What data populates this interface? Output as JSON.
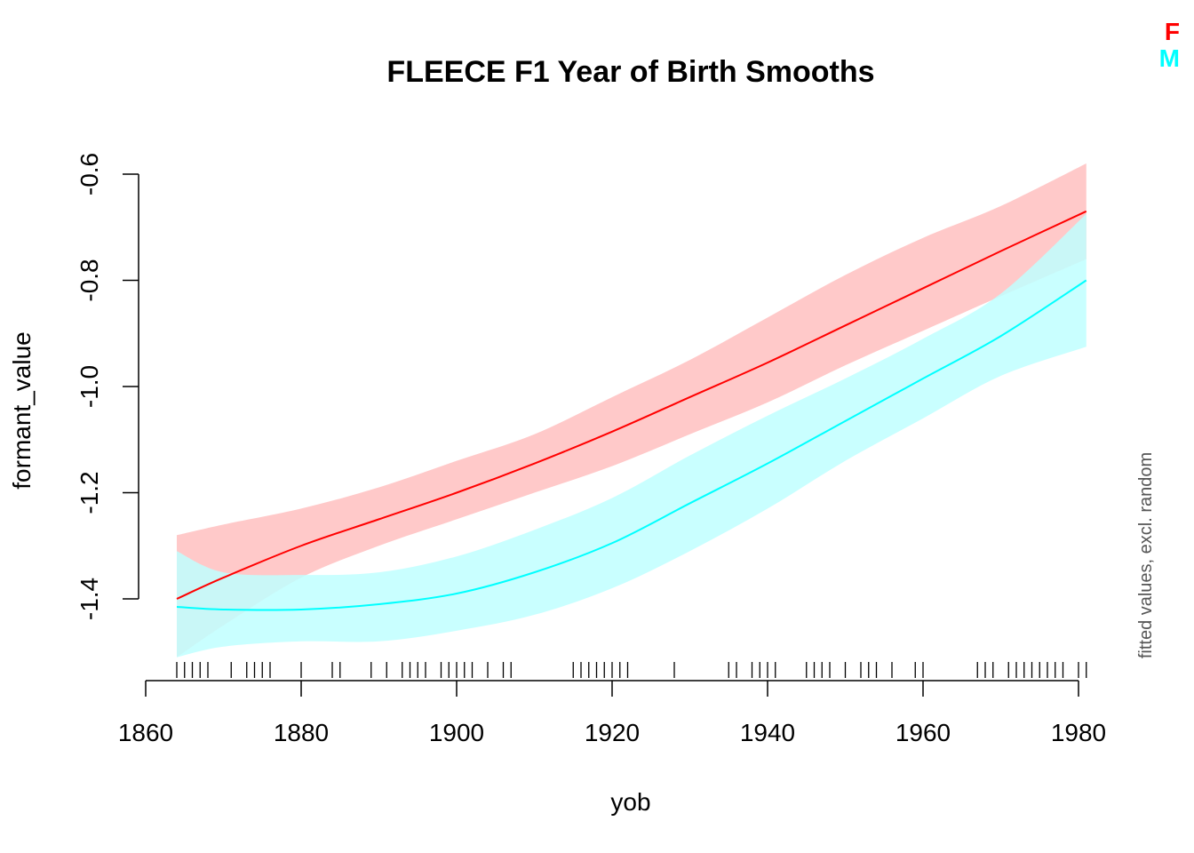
{
  "chart_data": {
    "type": "line",
    "title": "FLEECE F1 Year of Birth Smooths",
    "xlabel": "yob",
    "ylabel": "formant_value",
    "side_note": "fitted values, excl. random",
    "xlim": [
      1864,
      1981
    ],
    "ylim": [
      -1.52,
      -0.58
    ],
    "x_ticks": [
      1860,
      1880,
      1900,
      1920,
      1940,
      1960,
      1980
    ],
    "y_ticks": [
      -1.4,
      -1.2,
      -1.0,
      -0.8,
      -0.6
    ],
    "x_tick_labels": [
      "1860",
      "1880",
      "1900",
      "1920",
      "1940",
      "1960",
      "1980"
    ],
    "y_tick_labels": [
      "-1.4",
      "-1.2",
      "-1.0",
      "-0.8",
      "-0.6"
    ],
    "x": [
      1864,
      1870,
      1880,
      1890,
      1900,
      1910,
      1920,
      1930,
      1940,
      1950,
      1960,
      1970,
      1981
    ],
    "series": [
      {
        "name": "F",
        "color": "#ff0000",
        "band_color": "#ffbfbf",
        "fit": [
          -1.4,
          -1.36,
          -1.3,
          -1.25,
          -1.2,
          -1.145,
          -1.085,
          -1.02,
          -0.955,
          -0.885,
          -0.815,
          -0.745,
          -0.67
        ],
        "lower": [
          -1.51,
          -1.45,
          -1.36,
          -1.3,
          -1.25,
          -1.2,
          -1.15,
          -1.09,
          -1.03,
          -0.96,
          -0.895,
          -0.83,
          -0.76
        ],
        "upper": [
          -1.28,
          -1.26,
          -1.23,
          -1.19,
          -1.14,
          -1.09,
          -1.02,
          -0.95,
          -0.87,
          -0.79,
          -0.72,
          -0.66,
          -0.58
        ]
      },
      {
        "name": "M",
        "color": "#00ffff",
        "band_color": "#bfffff",
        "fit": [
          -1.415,
          -1.42,
          -1.42,
          -1.41,
          -1.39,
          -1.35,
          -1.295,
          -1.22,
          -1.145,
          -1.065,
          -0.985,
          -0.905,
          -0.8
        ],
        "lower": [
          -1.51,
          -1.49,
          -1.48,
          -1.48,
          -1.46,
          -1.43,
          -1.38,
          -1.31,
          -1.23,
          -1.14,
          -1.06,
          -0.98,
          -0.925
        ],
        "upper": [
          -1.31,
          -1.35,
          -1.355,
          -1.35,
          -1.32,
          -1.27,
          -1.21,
          -1.13,
          -1.055,
          -0.985,
          -0.91,
          -0.825,
          -0.675
        ]
      }
    ],
    "rug_x": [
      1864,
      1865,
      1866,
      1867,
      1868,
      1871,
      1873,
      1874,
      1875,
      1876,
      1880,
      1884,
      1885,
      1889,
      1891,
      1893,
      1894,
      1895,
      1896,
      1898,
      1899,
      1900,
      1901,
      1902,
      1904,
      1906,
      1907,
      1915,
      1916,
      1917,
      1918,
      1919,
      1920,
      1921,
      1922,
      1928,
      1935,
      1936,
      1938,
      1939,
      1940,
      1941,
      1945,
      1946,
      1947,
      1948,
      1950,
      1952,
      1953,
      1954,
      1956,
      1959,
      1960,
      1967,
      1968,
      1969,
      1971,
      1972,
      1973,
      1974,
      1975,
      1976,
      1977,
      1978,
      1980,
      1981
    ],
    "legend_position": "top-right"
  }
}
